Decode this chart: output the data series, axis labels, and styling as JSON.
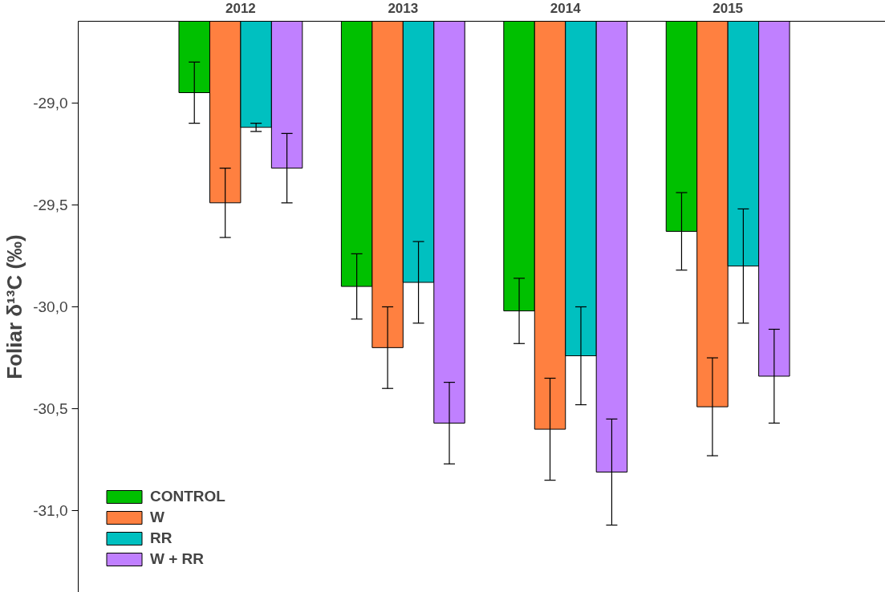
{
  "chart_data": {
    "type": "bar",
    "ylabel": "Foliar δ¹³C (‰)",
    "categories": [
      "2012",
      "2013",
      "2014",
      "2015"
    ],
    "series": [
      {
        "name": "CONTROL",
        "color": "#00c000",
        "values": [
          -28.95,
          -29.9,
          -30.02,
          -29.63
        ],
        "errors": [
          0.15,
          0.16,
          0.16,
          0.19
        ]
      },
      {
        "name": "W",
        "color": "#ff8040",
        "values": [
          -29.49,
          -30.2,
          -30.6,
          -30.49
        ],
        "errors": [
          0.17,
          0.2,
          0.25,
          0.24
        ]
      },
      {
        "name": "RR",
        "color": "#00c0c0",
        "values": [
          -29.12,
          -29.88,
          -30.24,
          -29.8
        ],
        "errors": [
          0.02,
          0.2,
          0.24,
          0.28
        ]
      },
      {
        "name": "W + RR",
        "color": "#c080ff",
        "values": [
          -29.32,
          -30.57,
          -30.81,
          -30.34
        ],
        "errors": [
          0.17,
          0.2,
          0.26,
          0.23
        ]
      }
    ],
    "ylim": [
      -31.4,
      -28.6
    ],
    "yticks": [
      {
        "value": -29.0,
        "label": "-29,0"
      },
      {
        "value": -29.5,
        "label": "-29,5"
      },
      {
        "value": -30.0,
        "label": "-30,0"
      },
      {
        "value": -30.5,
        "label": "-30,5"
      },
      {
        "value": -31.0,
        "label": "-31,0"
      }
    ],
    "grid": false,
    "legend": "bottom left"
  }
}
